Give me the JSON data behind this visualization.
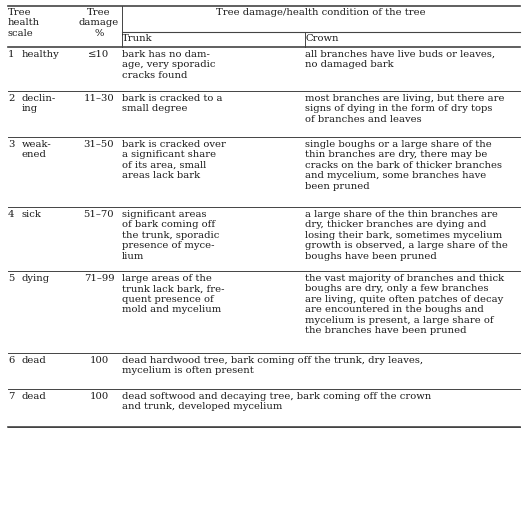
{
  "col_headers": {
    "h1": "Tree\nhealth\nscale",
    "h2": "Tree\ndamage\n%",
    "h3_span": "Tree damage/health condition of the tree",
    "h3": "Trunk",
    "h4": "Crown"
  },
  "rows": [
    {
      "num": "1",
      "health": "healthy",
      "damage": "≤10",
      "trunk": "bark has no dam-\nage, very sporadic\ncracks found",
      "crown": "all branches have live buds or leaves,\nno damaged bark",
      "merged": false
    },
    {
      "num": "2",
      "health": "declin-\ning",
      "damage": "11–30",
      "trunk": "bark is cracked to a\nsmall degree",
      "crown": "most branches are living, but there are\nsigns of dying in the form of dry tops\nof branches and leaves",
      "merged": false
    },
    {
      "num": "3",
      "health": "weak-\nened",
      "damage": "31–50",
      "trunk": "bark is cracked over\na significant share\nof its area, small\nareas lack bark",
      "crown": "single boughs or a large share of the\nthin branches are dry, there may be\ncracks on the bark of thicker branches\nand mycelium, some branches have\nbeen pruned",
      "merged": false
    },
    {
      "num": "4",
      "health": "sick",
      "damage": "51–70",
      "trunk": "significant areas\nof bark coming off\nthe trunk, sporadic\npresence of myce-\nlium",
      "crown": "a large share of the thin branches are\ndry, thicker branches are dying and\nlosing their bark, sometimes mycelium\ngrowth is observed, a large share of the\nboughs have been pruned",
      "merged": false
    },
    {
      "num": "5",
      "health": "dying",
      "damage": "71–99",
      "trunk": "large areas of the\ntrunk lack bark, fre-\nquent presence of\nmold and mycelium",
      "crown": "the vast majority of branches and thick\nboughs are dry, only a few branches\nare living, quite often patches of decay\nare encountered in the boughs and\nmycelium is present, a large share of\nthe branches have been pruned",
      "merged": false
    },
    {
      "num": "6",
      "health": "dead",
      "damage": "100",
      "trunk": "dead hardwood tree, bark coming off the trunk, dry leaves,\nmycelium is often present",
      "crown": "",
      "merged": true
    },
    {
      "num": "7",
      "health": "dead",
      "damage": "100",
      "trunk": "dead softwood and decaying tree, bark coming off the crown\nand trunk, developed mycelium",
      "crown": "",
      "merged": true
    }
  ],
  "bg_color": "#ffffff",
  "text_color": "#1a1a1a",
  "line_color": "#444444",
  "font_family": "DejaVu Serif",
  "font_size": 7.2
}
